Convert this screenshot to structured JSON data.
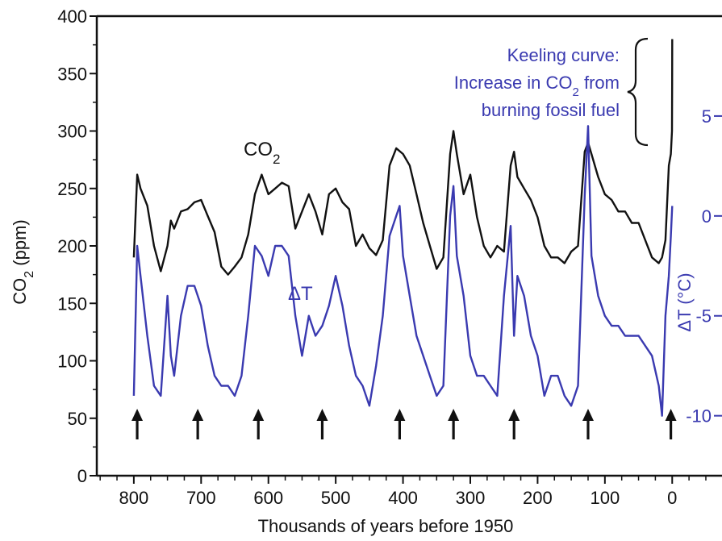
{
  "chart_data": {
    "type": "line",
    "xlabel": "Thousands of years before 1950",
    "ylabel_left": {
      "main": "CO",
      "sub": "2",
      "rest": " (ppm)"
    },
    "ylabel_right": "ΔT (°C)",
    "xlim": [
      855,
      -80
    ],
    "ylim_left": [
      0,
      400
    ],
    "ylim_right": [
      -13,
      10
    ],
    "x_ticks": [
      800,
      700,
      600,
      500,
      400,
      300,
      200,
      100,
      0
    ],
    "y_ticks_left": [
      0,
      50,
      100,
      150,
      200,
      250,
      300,
      350,
      400
    ],
    "y_ticks_right": [
      5,
      0,
      -5,
      -10
    ],
    "colors": {
      "co2": "#111111",
      "temp": "#3a3ab0"
    },
    "annotation": {
      "lines": [
        "Keeling curve:",
        "Increase in CO2 from",
        "burning fossil fuel"
      ],
      "line2_parts": {
        "pre": "Increase in CO",
        "sub": "2",
        "post": " from"
      }
    },
    "arrow_markers_x": [
      795,
      705,
      615,
      520,
      405,
      325,
      235,
      125,
      2
    ],
    "series": [
      {
        "name": "CO2",
        "label": {
          "main": "CO",
          "sub": "2"
        },
        "axis": "left",
        "x": [
          800,
          795,
          790,
          780,
          770,
          760,
          750,
          745,
          740,
          730,
          720,
          710,
          700,
          690,
          680,
          670,
          660,
          650,
          640,
          630,
          620,
          610,
          600,
          590,
          580,
          570,
          560,
          550,
          540,
          530,
          520,
          510,
          500,
          490,
          480,
          470,
          460,
          450,
          440,
          430,
          420,
          410,
          400,
          390,
          380,
          370,
          360,
          350,
          340,
          330,
          325,
          320,
          310,
          300,
          290,
          280,
          270,
          260,
          250,
          240,
          235,
          230,
          220,
          210,
          200,
          190,
          180,
          170,
          160,
          150,
          140,
          130,
          125,
          120,
          110,
          100,
          90,
          80,
          70,
          60,
          50,
          40,
          30,
          20,
          15,
          10,
          5,
          2,
          0.3,
          0.1,
          0
        ],
        "values": [
          190,
          262,
          250,
          235,
          200,
          178,
          200,
          222,
          215,
          230,
          232,
          238,
          240,
          226,
          212,
          182,
          175,
          182,
          190,
          210,
          245,
          262,
          245,
          250,
          255,
          252,
          215,
          230,
          245,
          230,
          210,
          245,
          250,
          238,
          232,
          200,
          210,
          198,
          192,
          205,
          270,
          285,
          280,
          270,
          245,
          220,
          200,
          180,
          190,
          280,
          300,
          280,
          245,
          262,
          225,
          200,
          190,
          200,
          195,
          270,
          282,
          260,
          250,
          240,
          225,
          200,
          190,
          190,
          185,
          195,
          200,
          282,
          290,
          280,
          260,
          245,
          240,
          230,
          230,
          220,
          220,
          205,
          190,
          185,
          190,
          205,
          270,
          280,
          300,
          340,
          380
        ]
      },
      {
        "name": "ΔT",
        "label": "ΔT",
        "axis": "right",
        "x": [
          800,
          795,
          790,
          780,
          770,
          760,
          750,
          745,
          740,
          730,
          720,
          710,
          700,
          690,
          680,
          670,
          660,
          650,
          640,
          630,
          620,
          610,
          600,
          590,
          580,
          570,
          560,
          550,
          540,
          530,
          520,
          510,
          500,
          490,
          480,
          470,
          460,
          450,
          440,
          430,
          420,
          410,
          405,
          400,
          390,
          380,
          370,
          360,
          350,
          340,
          330,
          325,
          320,
          310,
          300,
          290,
          280,
          270,
          260,
          250,
          240,
          235,
          230,
          220,
          210,
          200,
          190,
          180,
          170,
          160,
          150,
          140,
          130,
          125,
          120,
          110,
          100,
          90,
          80,
          70,
          60,
          50,
          40,
          30,
          20,
          15,
          10,
          5,
          2,
          0
        ],
        "values": [
          -9,
          -1.5,
          -3,
          -6,
          -8.5,
          -9,
          -4,
          -7,
          -8,
          -5,
          -3.5,
          -3.5,
          -4.5,
          -6.5,
          -8,
          -8.5,
          -8.5,
          -9,
          -8,
          -5,
          -1.5,
          -2,
          -3,
          -1.5,
          -1.5,
          -2,
          -5,
          -7,
          -5,
          -6,
          -5.5,
          -4.5,
          -3,
          -4.5,
          -6.5,
          -8,
          -8.5,
          -9.5,
          -7.5,
          -5,
          -1,
          0,
          0.5,
          -2,
          -4,
          -6,
          -7,
          -8,
          -9,
          -8.5,
          0,
          1.5,
          -2,
          -4,
          -7,
          -8,
          -8,
          -8.5,
          -9,
          -4,
          -0.5,
          -6,
          -3,
          -4,
          -6,
          -7,
          -9,
          -8,
          -8,
          -9,
          -9.5,
          -8.5,
          1,
          4.5,
          -2,
          -4,
          -5,
          -5.5,
          -5.5,
          -6,
          -6,
          -6,
          -6.5,
          -7,
          -8.5,
          -10,
          -5,
          -3,
          -1,
          0.5
        ]
      }
    ]
  }
}
